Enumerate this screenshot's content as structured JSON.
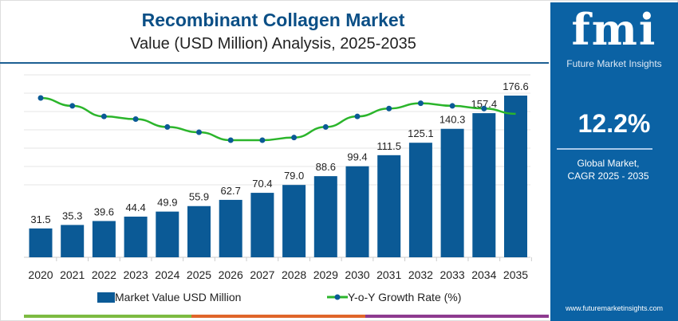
{
  "header": {
    "title": "Recombinant Collagen Market",
    "subtitle": "Value (USD Million) Analysis, 2025-2035"
  },
  "panel": {
    "logo_text": "fmi",
    "logo_subtitle": "Future Market Insights",
    "cagr_value": "12.2%",
    "cagr_label_line1": "Global Market,",
    "cagr_label_line2": "CAGR 2025 - 2035",
    "website": "www.futuremarketinsights.com"
  },
  "colors": {
    "bar": "#0b5a96",
    "line": "#2bb52b",
    "dot": "#0b5a96",
    "panel": "#0b62a4",
    "title": "#0b4f86",
    "stripes": [
      "#7dbb42",
      "#e0662a",
      "#8e3b8f"
    ]
  },
  "chart_data": {
    "type": "bar+line",
    "categories": [
      "2020",
      "2021",
      "2022",
      "2023",
      "2024",
      "2025",
      "2026",
      "2027",
      "2028",
      "2029",
      "2030",
      "2031",
      "2032",
      "2033",
      "2034",
      "2035"
    ],
    "series": [
      {
        "name": "Market Value USD Million",
        "type": "bar",
        "values": [
          31.5,
          35.3,
          39.6,
          44.4,
          49.9,
          55.9,
          62.7,
          70.4,
          79.0,
          88.6,
          99.4,
          111.5,
          125.1,
          140.3,
          157.4,
          176.6
        ],
        "data_labels": [
          "31.5",
          "35.3",
          "39.6",
          "44.4",
          "49.9",
          "55.9",
          "62.7",
          "70.4",
          "79.0",
          "88.6",
          "99.4",
          "111.5",
          "125.1",
          "140.3",
          "157.4",
          "176.6"
        ]
      },
      {
        "name": "Y-o-Y Growth Rate (%)",
        "type": "line",
        "values_approx": [
          13.0,
          12.7,
          12.3,
          12.2,
          11.9,
          11.7,
          11.4,
          11.4,
          11.5,
          11.9,
          12.3,
          12.6,
          12.8,
          12.7,
          12.6,
          12.4
        ]
      }
    ],
    "legend_position": "bottom",
    "grid": true,
    "ylim": [
      0,
      200
    ]
  }
}
